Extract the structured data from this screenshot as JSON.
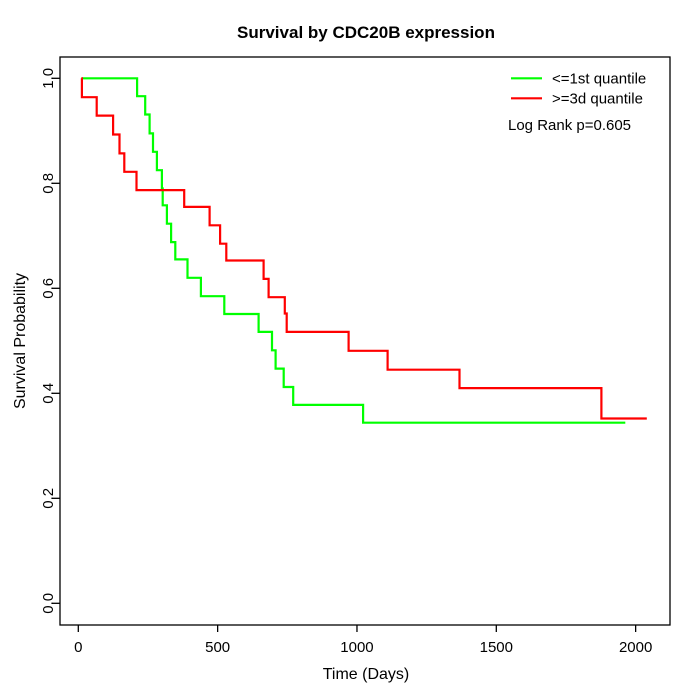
{
  "chart_data": {
    "type": "line",
    "subtype": "kaplan_meier_step",
    "title": "Survival by CDC20B expression",
    "xlabel": "Time (Days)",
    "ylabel": "Survival Probability",
    "x_ticks": [
      0,
      500,
      1000,
      1500,
      2000
    ],
    "y_ticks": [
      0.0,
      0.2,
      0.4,
      0.6,
      0.8,
      1.0
    ],
    "xlim": [
      0,
      2060
    ],
    "ylim": [
      0.0,
      1.0
    ],
    "grid": false,
    "legend_position": "top-right",
    "annotation": "Log Rank p=0.605",
    "series": [
      {
        "name": "<=1st quantile",
        "color": "#00FF00",
        "end_time": 1963,
        "points": [
          [
            11,
            1.0
          ],
          [
            211,
            0.966
          ],
          [
            240,
            0.931
          ],
          [
            256,
            0.895
          ],
          [
            268,
            0.86
          ],
          [
            282,
            0.825
          ],
          [
            300,
            0.79
          ],
          [
            303,
            0.758
          ],
          [
            318,
            0.723
          ],
          [
            333,
            0.688
          ],
          [
            348,
            0.655
          ],
          [
            392,
            0.62
          ],
          [
            440,
            0.585
          ],
          [
            524,
            0.551
          ],
          [
            647,
            0.517
          ],
          [
            695,
            0.482
          ],
          [
            708,
            0.447
          ],
          [
            737,
            0.412
          ],
          [
            771,
            0.378
          ],
          [
            1022,
            0.344
          ]
        ]
      },
      {
        "name": ">=3d quantile",
        "color": "#FF0000",
        "end_time": 2040,
        "points": [
          [
            11,
            1.0
          ],
          [
            13,
            0.964
          ],
          [
            66,
            0.929
          ],
          [
            125,
            0.893
          ],
          [
            148,
            0.857
          ],
          [
            165,
            0.822
          ],
          [
            209,
            0.787
          ],
          [
            380,
            0.755
          ],
          [
            471,
            0.72
          ],
          [
            509,
            0.685
          ],
          [
            531,
            0.653
          ],
          [
            665,
            0.618
          ],
          [
            683,
            0.583
          ],
          [
            741,
            0.552
          ],
          [
            748,
            0.517
          ],
          [
            970,
            0.481
          ],
          [
            1110,
            0.445
          ],
          [
            1368,
            0.41
          ],
          [
            1877,
            0.352
          ]
        ]
      }
    ],
    "axis_color": "#000000",
    "background_color": "#ffffff"
  }
}
